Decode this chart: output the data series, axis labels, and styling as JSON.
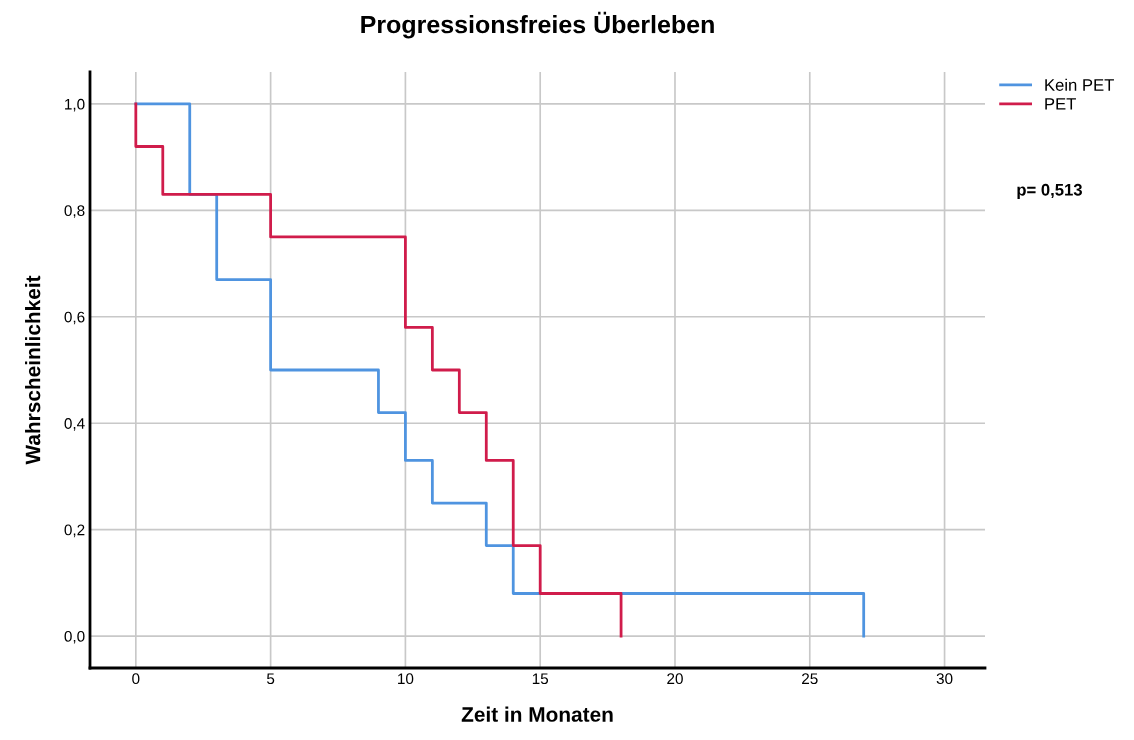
{
  "chart_data": {
    "type": "step",
    "title": "Progressionsfreies Überleben",
    "xlabel": "Zeit in Monaten",
    "ylabel": "Wahrscheinlichkeit",
    "series": [
      {
        "name": "Kein PET",
        "color": "#4f94e0",
        "x": [
          0,
          2,
          3,
          5,
          9,
          10,
          11,
          13,
          14,
          27
        ],
        "values": [
          1.0,
          0.83,
          0.67,
          0.5,
          0.42,
          0.33,
          0.25,
          0.17,
          0.08,
          0.0
        ]
      },
      {
        "name": "PET",
        "color": "#d01c4b",
        "x": [
          0,
          0,
          1,
          5,
          10,
          11,
          12,
          13,
          14,
          15,
          18
        ],
        "values": [
          1.0,
          0.92,
          0.83,
          0.75,
          0.58,
          0.5,
          0.42,
          0.33,
          0.17,
          0.08,
          0.0
        ]
      }
    ],
    "xlim": [
      -1.7,
      31.5
    ],
    "ylim": [
      -0.06,
      1.06
    ],
    "xticks": [
      0,
      5,
      10,
      15,
      20,
      25,
      30
    ],
    "yticks": [
      {
        "value": 0,
        "label": "0,0"
      },
      {
        "value": 0.2,
        "label": "0,2"
      },
      {
        "value": 0.4,
        "label": "0,4"
      },
      {
        "value": 0.6,
        "label": "0,6"
      },
      {
        "value": 0.8,
        "label": "0,8"
      },
      {
        "value": 1.0,
        "label": "1,0"
      }
    ],
    "grid": true,
    "legend": "top right",
    "annotations": [
      "p= 0,513"
    ]
  }
}
